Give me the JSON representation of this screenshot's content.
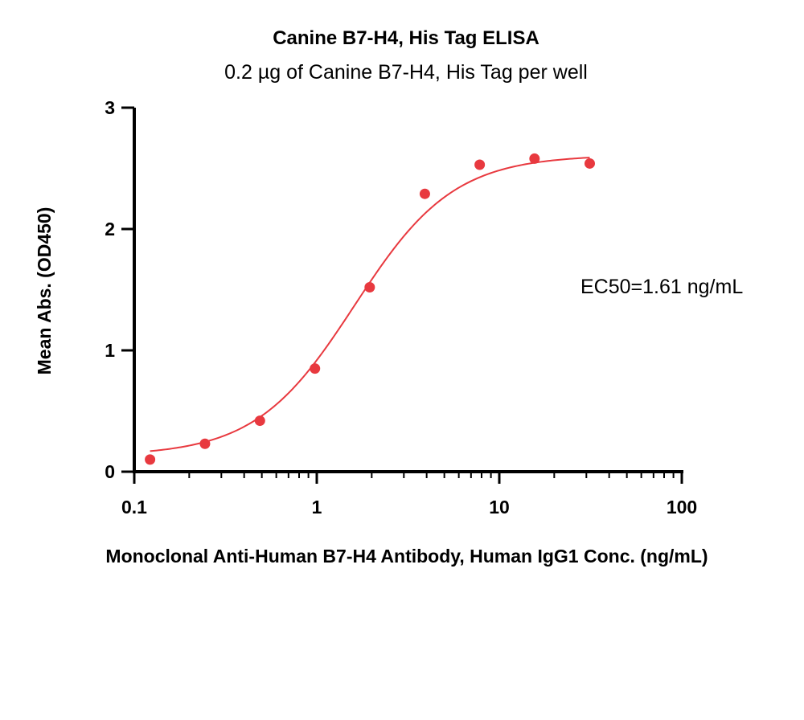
{
  "chart_data": {
    "type": "scatter",
    "title": "Canine B7-H4, His Tag ELISA",
    "subtitle": "0.2 µg of Canine B7-H4, His Tag per well",
    "xlabel": "Monoclonal Anti-Human B7-H4 Antibody, Human IgG1 Conc. (ng/mL)",
    "ylabel": "Mean Abs. (OD450)",
    "x_scale": "log",
    "xlim": [
      0.1,
      100
    ],
    "ylim": [
      0,
      3
    ],
    "x_ticks": [
      0.1,
      1,
      10,
      100
    ],
    "x_tick_labels": [
      "0.1",
      "1",
      "10",
      "100"
    ],
    "y_ticks": [
      0,
      1,
      2,
      3
    ],
    "y_tick_labels": [
      "0",
      "1",
      "2",
      "3"
    ],
    "grid": false,
    "color": "#e8393f",
    "annotation": "EC50=1.61 ng/mL",
    "points": {
      "x": [
        0.122,
        0.244,
        0.488,
        0.977,
        1.95,
        3.91,
        7.81,
        15.6,
        31.3
      ],
      "y": [
        0.1,
        0.23,
        0.42,
        0.85,
        1.52,
        2.29,
        2.53,
        2.58,
        2.54
      ]
    },
    "fit": {
      "model": "4PL",
      "bottom": 0.13,
      "top": 2.61,
      "ec50": 1.61,
      "hill": 1.6,
      "x_range": [
        0.122,
        31.3
      ]
    }
  }
}
